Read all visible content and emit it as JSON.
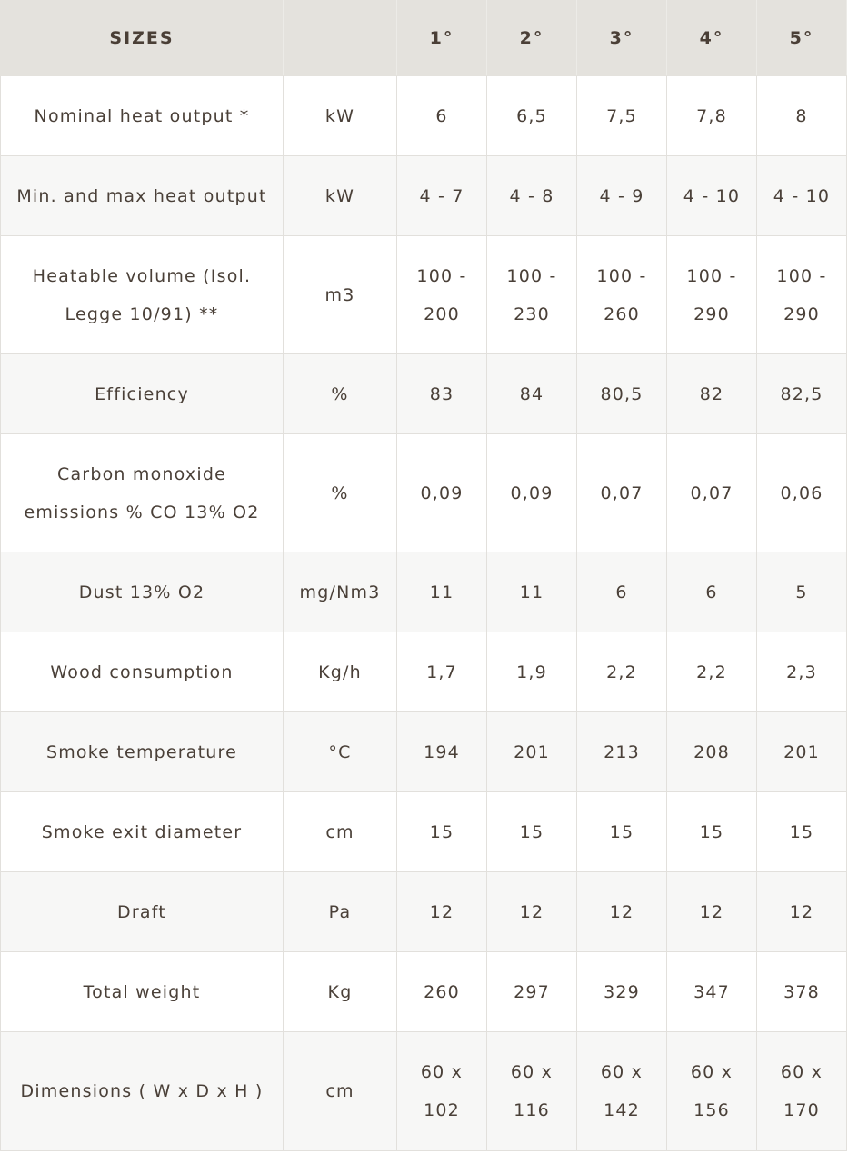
{
  "header": {
    "label": "SIZES",
    "unit": "",
    "sizes": [
      "1°",
      "2°",
      "3°",
      "4°",
      "5°"
    ]
  },
  "rows": [
    {
      "label": "Nominal heat output *",
      "unit": "kW",
      "values": [
        "6",
        "6,5",
        "7,5",
        "7,8",
        "8"
      ]
    },
    {
      "label": "Min. and max heat output",
      "unit": "kW",
      "values": [
        "4 - 7",
        "4 - 8",
        "4 - 9",
        "4 - 10",
        "4 - 10"
      ]
    },
    {
      "label": "Heatable volume (Isol. Legge 10/91) **",
      "unit": "m3",
      "values": [
        "100 - 200",
        "100 - 230",
        "100 - 260",
        "100 - 290",
        "100 - 290"
      ]
    },
    {
      "label": "Efficiency",
      "unit": "%",
      "values": [
        "83",
        "84",
        "80,5",
        "82",
        "82,5"
      ]
    },
    {
      "label": "Carbon monoxide emissions % CO 13% O2",
      "unit": "%",
      "values": [
        "0,09",
        "0,09",
        "0,07",
        "0,07",
        "0,06"
      ]
    },
    {
      "label": "Dust 13% O2",
      "unit": "mg/Nm3",
      "values": [
        "11",
        "11",
        "6",
        "6",
        "5"
      ]
    },
    {
      "label": "Wood consumption",
      "unit": "Kg/h",
      "values": [
        "1,7",
        "1,9",
        "2,2",
        "2,2",
        "2,3"
      ]
    },
    {
      "label": "Smoke temperature",
      "unit": "°C",
      "values": [
        "194",
        "201",
        "213",
        "208",
        "201"
      ]
    },
    {
      "label": "Smoke exit diameter",
      "unit": "cm",
      "values": [
        "15",
        "15",
        "15",
        "15",
        "15"
      ]
    },
    {
      "label": "Draft",
      "unit": "Pa",
      "values": [
        "12",
        "12",
        "12",
        "12",
        "12"
      ]
    },
    {
      "label": "Total weight",
      "unit": "Kg",
      "values": [
        "260",
        "297",
        "329",
        "347",
        "378"
      ]
    },
    {
      "label": "Dimensions ( W x D x H )",
      "unit": "cm",
      "values": [
        "60 x 102",
        "60 x 116",
        "60 x 142",
        "60 x 156",
        "60 x 170"
      ]
    }
  ]
}
